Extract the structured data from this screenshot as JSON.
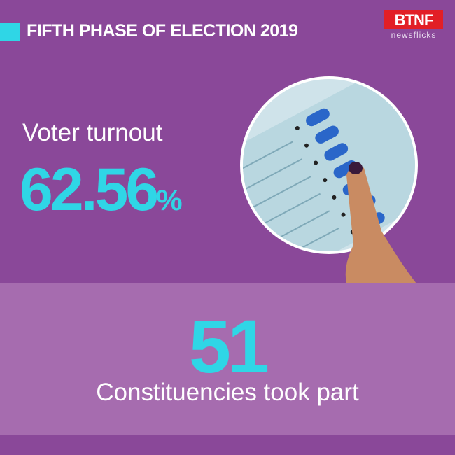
{
  "header": {
    "title": "FIFTH PHASE OF ELECTION 2019",
    "logo": {
      "left": "BT",
      "right": "NF",
      "tagline": "newsflicks"
    }
  },
  "turnout": {
    "label": "Voter turnout",
    "value": 62.56,
    "unit": "%"
  },
  "constituencies": {
    "value": 51,
    "label": "Constituencies took part"
  }
}
